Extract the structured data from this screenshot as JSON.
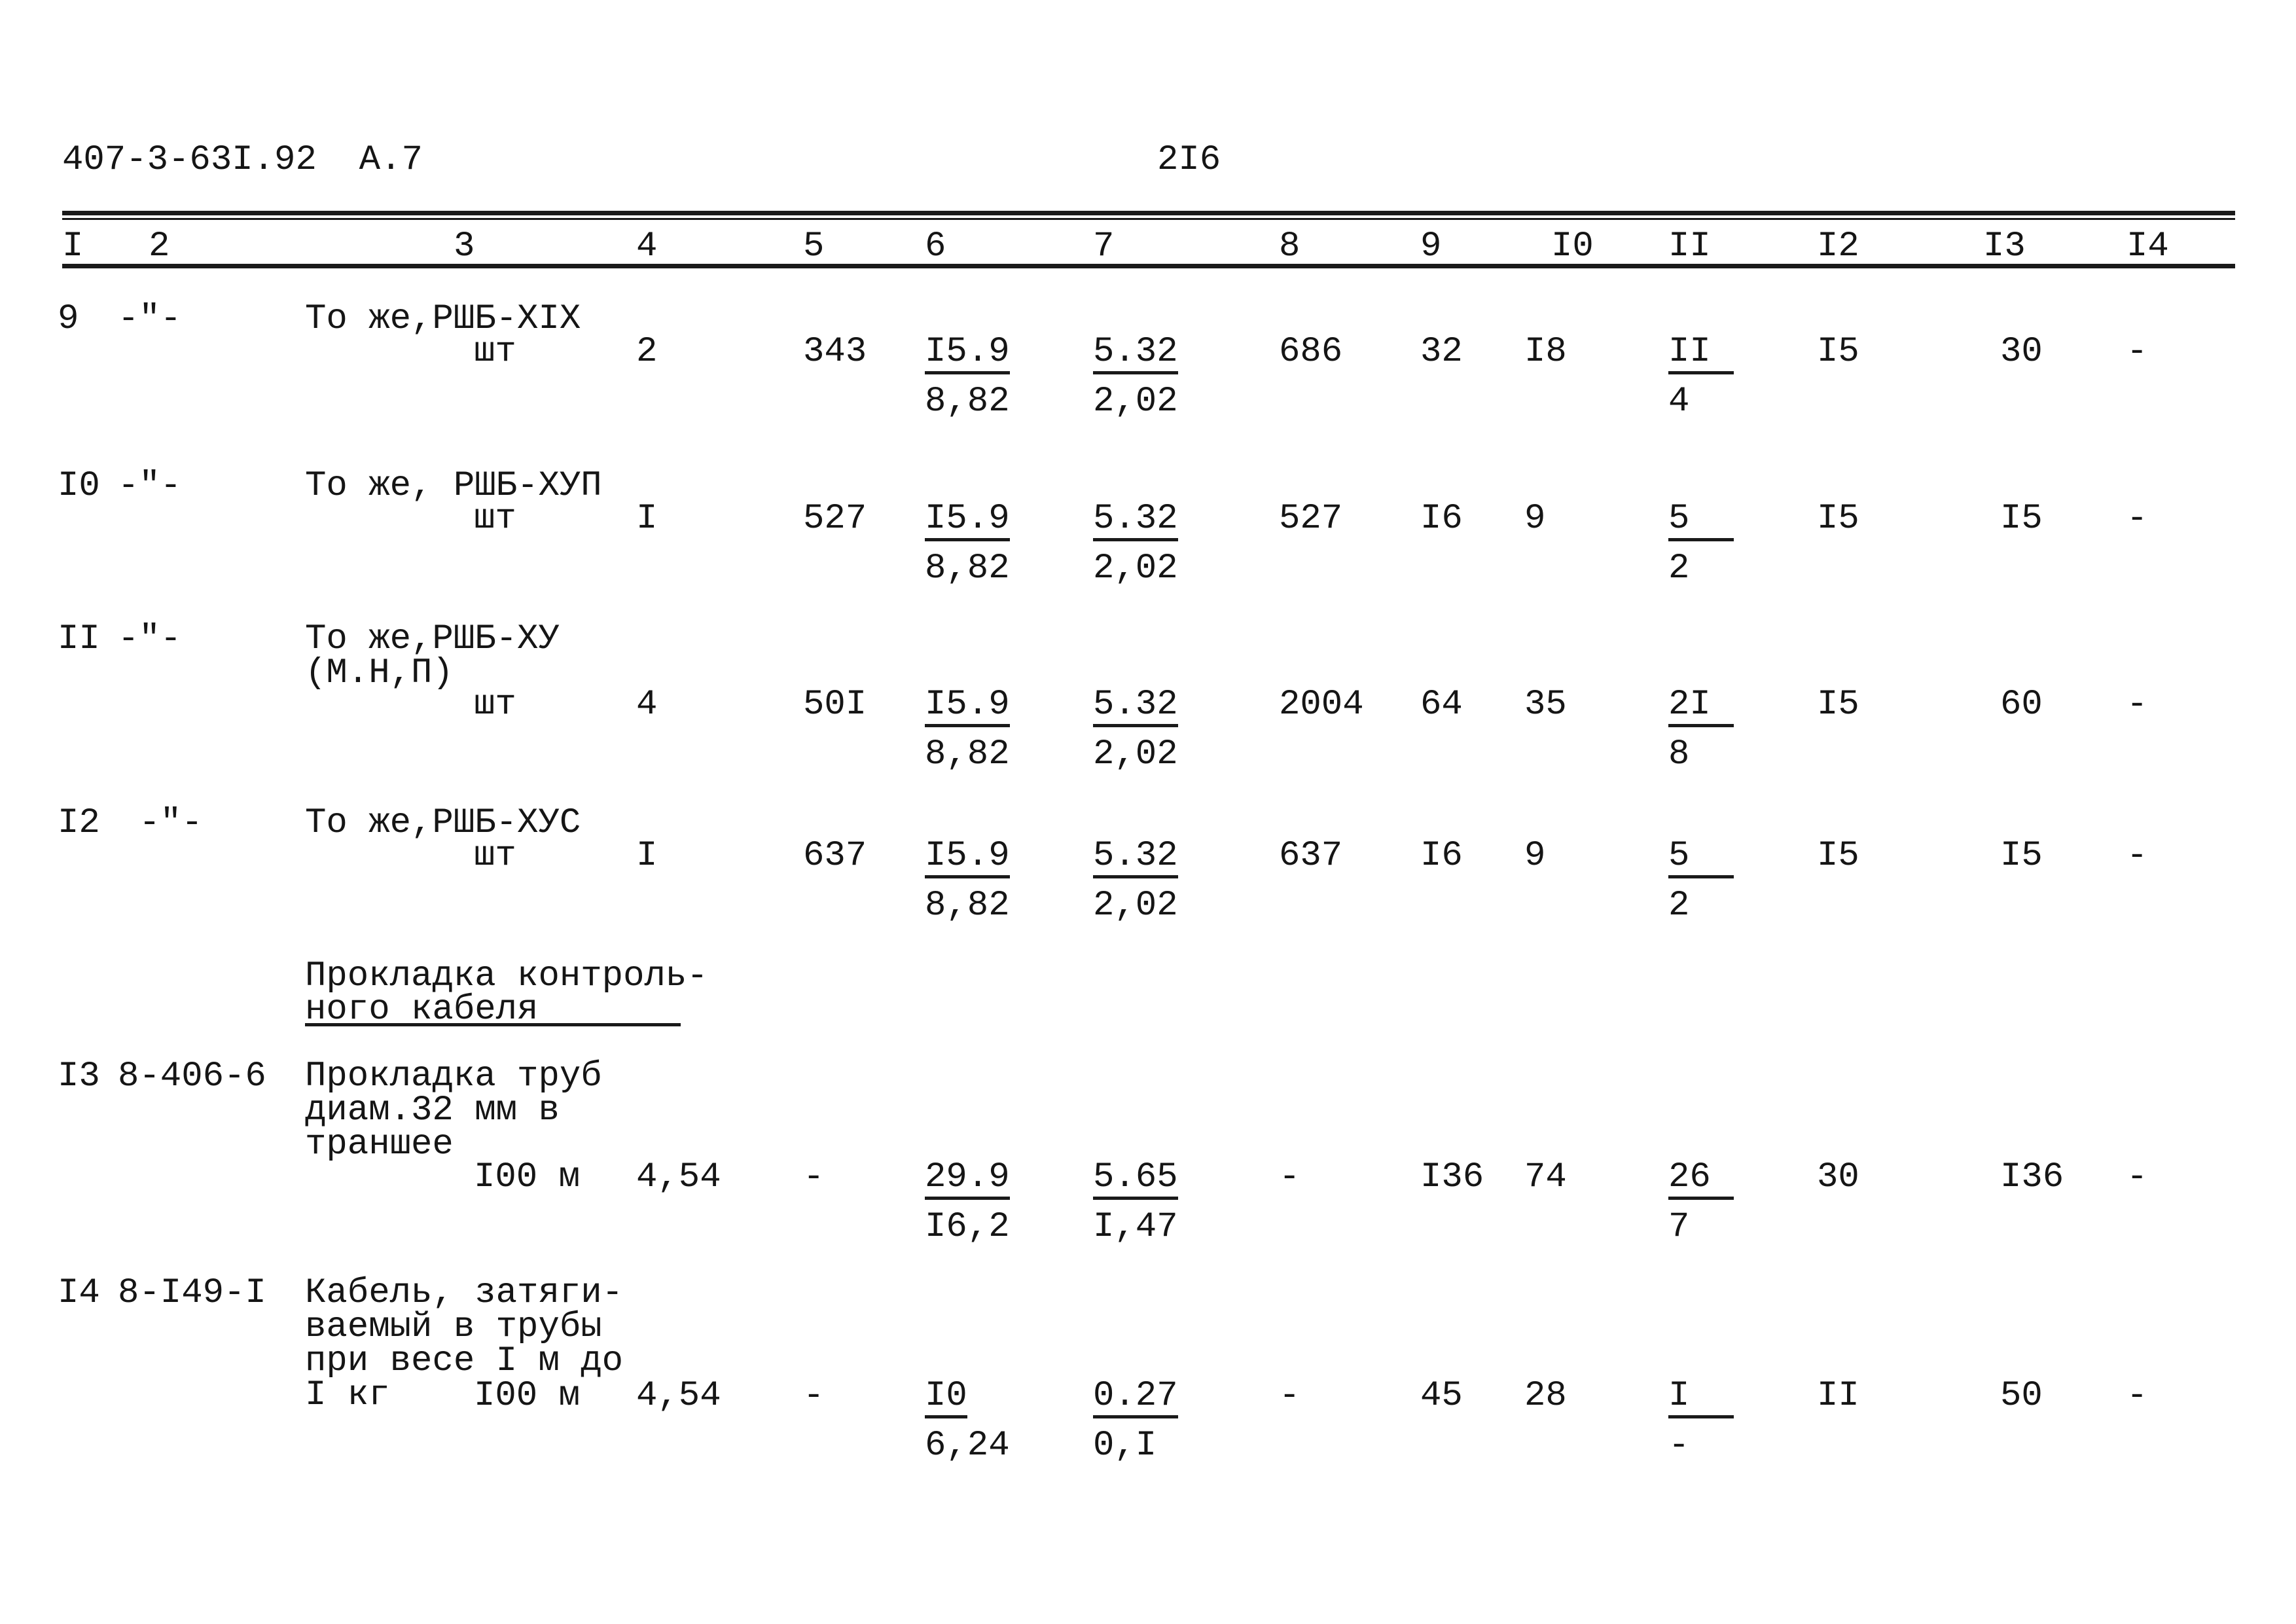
{
  "header": {
    "doc_code": "407-3-63I.92  А.7",
    "page_number": "2I6"
  },
  "column_headers": [
    "I",
    "2",
    "3",
    "4",
    "5",
    "6",
    "7",
    "8",
    "9",
    "I0",
    "II",
    "I2",
    "I3",
    "I4"
  ],
  "rows": [
    {
      "num": "9",
      "code": "-\"-",
      "desc": [
        "То же,РШБ-XIX"
      ],
      "unit": "шт",
      "c4": "2",
      "c5": "343",
      "c6": {
        "top": "I5.9",
        "bottom": "8,82"
      },
      "c7": {
        "top": "5.32",
        "bottom": "2,02"
      },
      "c8": "686",
      "c9": "32",
      "c10": "I8",
      "c11": {
        "top": "II",
        "bottom": "4"
      },
      "c12": "I5",
      "c13": "30",
      "c14": "-"
    },
    {
      "num": "I0",
      "code": "-\"-",
      "desc": [
        "То же, РШБ-ХУП"
      ],
      "unit": "шт",
      "c4": "I",
      "c5": "527",
      "c6": {
        "top": "I5.9",
        "bottom": "8,82"
      },
      "c7": {
        "top": "5.32",
        "bottom": "2,02"
      },
      "c8": "527",
      "c9": "I6",
      "c10": "9",
      "c11": {
        "top": "5",
        "bottom": "2"
      },
      "c12": "I5",
      "c13": "I5",
      "c14": "-"
    },
    {
      "num": "II",
      "code": "-\"-",
      "desc": [
        "То же,РШБ-ХУ",
        "(М.Н,П)"
      ],
      "unit": "шт",
      "c4": "4",
      "c5": "50I",
      "c6": {
        "top": "I5.9",
        "bottom": "8,82"
      },
      "c7": {
        "top": "5.32",
        "bottom": "2,02"
      },
      "c8": "2004",
      "c9": "64",
      "c10": "35",
      "c11": {
        "top": "2I",
        "bottom": "8"
      },
      "c12": "I5",
      "c13": "60",
      "c14": "-"
    },
    {
      "num": "I2",
      "code": " -\"-",
      "desc": [
        "То же,РШБ-ХУС"
      ],
      "unit": "шт",
      "c4": "I",
      "c5": "637",
      "c6": {
        "top": "I5.9",
        "bottom": "8,82"
      },
      "c7": {
        "top": "5.32",
        "bottom": "2,02"
      },
      "c8": "637",
      "c9": "I6",
      "c10": "9",
      "c11": {
        "top": "5",
        "bottom": "2"
      },
      "c12": "I5",
      "c13": "I5",
      "c14": "-"
    },
    {
      "num": "I3",
      "code": "8-406-6",
      "desc": [
        "Прокладка труб",
        "диам.32 мм в",
        "траншее"
      ],
      "unit": "I00 м",
      "c4": "4,54",
      "c5": "-",
      "c6": {
        "top": "29.9",
        "bottom": "I6,2"
      },
      "c7": {
        "top": "5.65",
        "bottom": "I,47"
      },
      "c8": "-",
      "c9": "I36",
      "c10": "74",
      "c11": {
        "top": "26",
        "bottom": "7"
      },
      "c12": "30",
      "c13": "I36",
      "c14": "-"
    },
    {
      "num": "I4",
      "code": "8-I49-I",
      "desc": [
        "Кабель, затяги-",
        "ваемый в трубы",
        "при весе I м до",
        "I кг"
      ],
      "unit": "I00 м",
      "c4": "4,54",
      "c5": "-",
      "c6": {
        "top": "I0",
        "bottom": "6,24"
      },
      "c7": {
        "top": "0.27",
        "bottom": "0,I"
      },
      "c8": "-",
      "c9": "45",
      "c10": "28",
      "c11": {
        "top": "I",
        "bottom": "-"
      },
      "c12": "II",
      "c13": "50",
      "c14": "-"
    }
  ],
  "section": {
    "lines": [
      "Прокладка контроль-",
      "ного кабеля"
    ]
  }
}
